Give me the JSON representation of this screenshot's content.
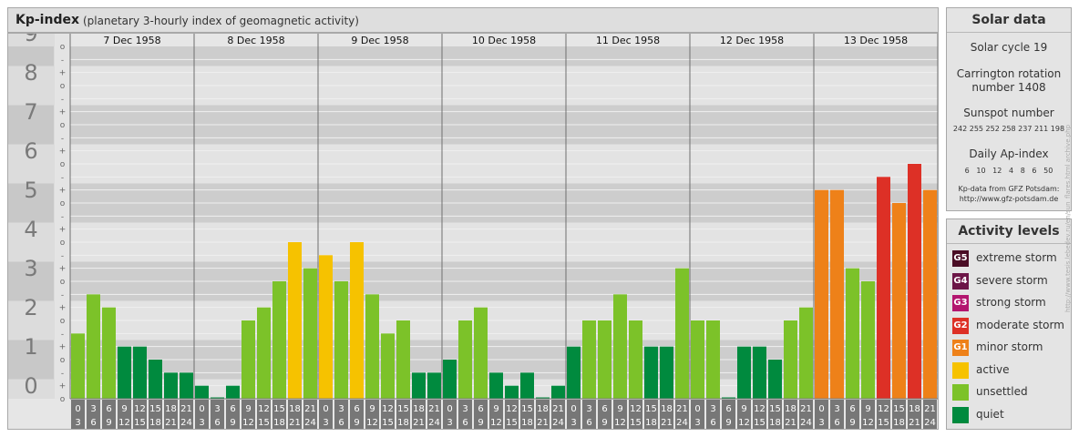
{
  "header": {
    "title": "Kp-index",
    "subtitle": "(planetary 3-hourly index of geomagnetic activity)"
  },
  "colors": {
    "quiet": "#008a3e",
    "unsettled": "#7cc229",
    "active": "#f6c200",
    "minor_storm": "#ee8119",
    "moderate_storm": "#dd3026",
    "strong_storm": "#b3166f",
    "severe_storm": "#6c1547",
    "extreme_storm": "#4a0d25"
  },
  "chart_data": {
    "type": "bar",
    "title": "Kp-index",
    "subtitle": "(planetary 3-hourly index of geomagnetic activity)",
    "ylim": [
      0,
      9
    ],
    "y_ticks": [
      "0",
      "1",
      "2",
      "3",
      "4",
      "5",
      "6",
      "7",
      "8",
      "9"
    ],
    "minor_marks": [
      "o",
      "+",
      "-"
    ],
    "days": [
      "7 Dec 1958",
      "8 Dec 1958",
      "9 Dec 1958",
      "10 Dec 1958",
      "11 Dec 1958",
      "12 Dec 1958",
      "13 Dec 1958"
    ],
    "hour_labels": [
      [
        "0",
        "3"
      ],
      [
        "3",
        "6"
      ],
      [
        "6",
        "9"
      ],
      [
        "9",
        "12"
      ],
      [
        "12",
        "15"
      ],
      [
        "15",
        "18"
      ],
      [
        "18",
        "21"
      ],
      [
        "21",
        "24"
      ]
    ],
    "values": [
      [
        1.667,
        2.667,
        2.333,
        1.333,
        1.333,
        1.0,
        0.667,
        0.667
      ],
      [
        0.333,
        0.0,
        0.333,
        2.0,
        2.333,
        3.0,
        4.0,
        3.333
      ],
      [
        3.667,
        3.0,
        4.0,
        2.667,
        1.667,
        2.0,
        0.667,
        0.667
      ],
      [
        1.0,
        2.0,
        2.333,
        0.667,
        0.333,
        0.667,
        0.0,
        0.333
      ],
      [
        1.333,
        2.0,
        2.0,
        2.667,
        2.0,
        1.333,
        1.333,
        3.333
      ],
      [
        2.0,
        2.0,
        0.0,
        1.333,
        1.333,
        1.0,
        2.0,
        2.333
      ],
      [
        5.333,
        5.333,
        3.333,
        3.0,
        5.667,
        5.0,
        6.0,
        5.333
      ]
    ],
    "grid": true,
    "legend_placement": "right"
  },
  "solar": {
    "title": "Solar data",
    "cycle": "Solar cycle 19",
    "carrington_line1": "Carrington rotation",
    "carrington_line2": "number 1408",
    "sunspot_title": "Sunspot number",
    "sunspot_values": "242 255 252 258 237 211 198",
    "ap_title": "Daily Ap-index",
    "ap_values": "6   10   12   4   8   6   50",
    "source_line1": "Kp-data from GFZ Potsdam:",
    "source_line2": "http://www.gfz-potsdam.de"
  },
  "levels": {
    "title": "Activity levels",
    "items": [
      {
        "badge": "G5",
        "label": "extreme storm",
        "color": "#4a0d25"
      },
      {
        "badge": "G4",
        "label": "severe storm",
        "color": "#6c1547"
      },
      {
        "badge": "G3",
        "label": "strong storm",
        "color": "#b3166f"
      },
      {
        "badge": "G2",
        "label": "moderate storm",
        "color": "#dd3026"
      },
      {
        "badge": "G1",
        "label": "minor storm",
        "color": "#ee8119"
      },
      {
        "badge": "",
        "label": "active",
        "color": "#f6c200"
      },
      {
        "badge": "",
        "label": "unsettled",
        "color": "#7cc229"
      },
      {
        "badge": "",
        "label": "quiet",
        "color": "#008a3e"
      }
    ]
  },
  "credit": "http://www.tesis.lebedev.ru/en/sun_flares.html archive.php"
}
